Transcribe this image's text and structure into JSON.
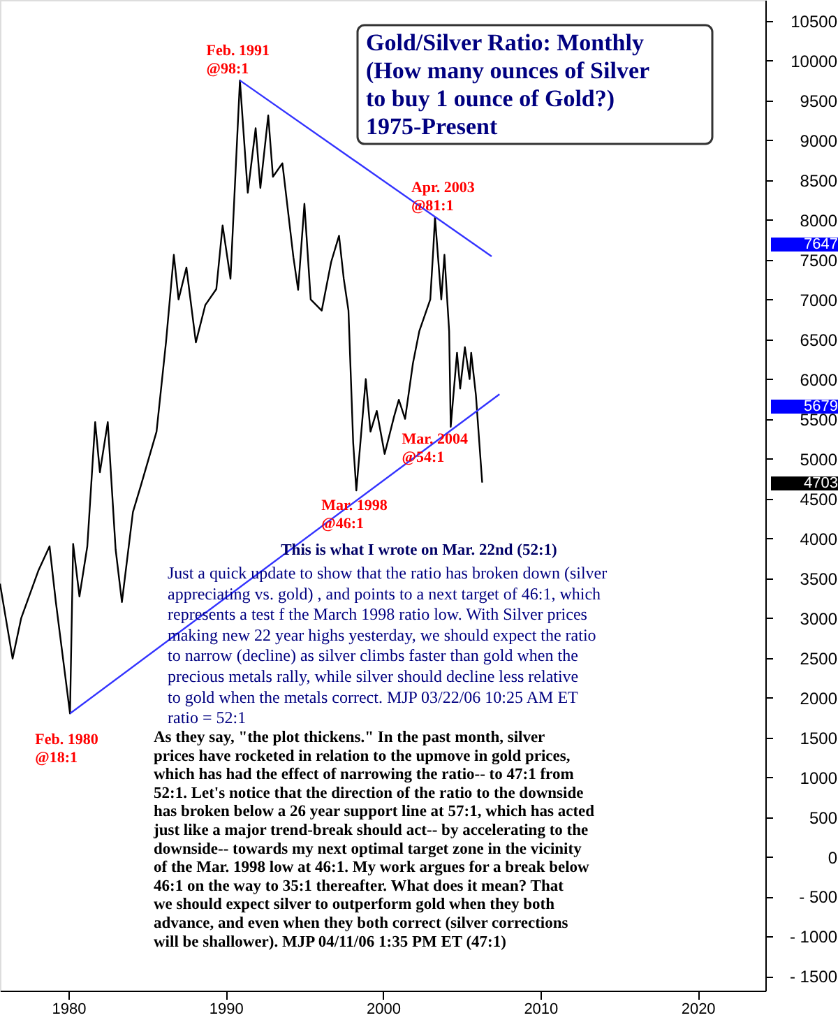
{
  "chart_data": {
    "type": "line",
    "title": "Gold/Silver Ratio: Monthly\n(How many ounces of Silver\nto buy 1 ounce of Gold?)\n1975-Present",
    "xlim": [
      1975.65,
      2024.3
    ],
    "xticks": [
      1980,
      1990,
      2000,
      2010,
      2020
    ],
    "ylim": [
      -1680,
      10760
    ],
    "yticks": [
      {
        "value": -1500,
        "label": "- 1500"
      },
      {
        "value": -1000,
        "label": "- 1000"
      },
      {
        "value": -500,
        "label": "- 500"
      },
      0,
      500,
      1000,
      1500,
      2000,
      2500,
      3000,
      3500,
      4000,
      4500,
      5000,
      5500,
      6000,
      6500,
      7000,
      7500,
      8000,
      8500,
      9000,
      9500,
      10000,
      10500
    ],
    "grid": false,
    "series": [
      {
        "color": "#000000",
        "x": [
          1975.65,
          1976.45,
          1977.0,
          1978.1,
          1978.8,
          1979.2,
          1980.1,
          1980.3,
          1980.7,
          1981.2,
          1981.7,
          1982.0,
          1982.5,
          1983.0,
          1983.4,
          1984.1,
          1984.6,
          1985.6,
          1986.2,
          1986.7,
          1987.0,
          1987.5,
          1988.1,
          1988.7,
          1989.4,
          1989.8,
          1990.3,
          1990.9,
          1991.4,
          1991.9,
          1992.2,
          1992.7,
          1993.0,
          1993.6,
          1994.3,
          1994.6,
          1995.0,
          1995.4,
          1996.1,
          1996.7,
          1997.2,
          1997.5,
          1997.8,
          1998.1,
          1998.3,
          1998.9,
          1999.2,
          1999.6,
          2000.1,
          2000.7,
          2001.0,
          2001.4,
          2001.9,
          2002.3,
          2003.0,
          2003.2,
          2003.3,
          2003.7,
          2003.9,
          2004.2,
          2004.3,
          2004.7,
          2004.9,
          2005.2,
          2005.5,
          2005.6,
          2005.9,
          2006.3
        ],
        "values": [
          3430,
          2490,
          3000,
          3600,
          3900,
          3200,
          1800,
          3930,
          3270,
          3900,
          5460,
          4830,
          5460,
          3860,
          3200,
          4330,
          4660,
          5340,
          6460,
          7560,
          7000,
          7400,
          6460,
          6930,
          7130,
          7930,
          7260,
          9750,
          8340,
          9150,
          8400,
          9310,
          8540,
          8710,
          7530,
          7120,
          8200,
          7000,
          6860,
          7470,
          7800,
          7260,
          6860,
          5200,
          4600,
          6000,
          5340,
          5600,
          5060,
          5530,
          5740,
          5500,
          6200,
          6600,
          7000,
          7660,
          8030,
          7000,
          7560,
          6600,
          5400,
          6330,
          5880,
          6400,
          6000,
          6330,
          5800,
          4700
        ]
      },
      {
        "type": "line",
        "color": "#3333ff",
        "x": [
          1990.9,
          2006.9
        ],
        "values": [
          9750,
          7540
        ]
      },
      {
        "type": "line",
        "color": "#3333ff",
        "x": [
          1980.1,
          2007.4
        ],
        "values": [
          1800,
          5810
        ]
      }
    ],
    "annotations": [
      {
        "text": "Feb. 1991\n@98:1",
        "x": 1990.9,
        "y": 9750
      },
      {
        "text": "Apr. 2003\n@81:1",
        "x": 2003.3,
        "y": 8030
      },
      {
        "text": "Mar. 2004\n@54:1",
        "x": 2004.3,
        "y": 5400
      },
      {
        "text": "Mar. 1998\n@46:1",
        "x": 1998.3,
        "y": 4600
      },
      {
        "text": "Feb. 1980\n@18:1",
        "x": 1980.1,
        "y": 1800
      },
      "7647",
      "5679",
      "4703",
      "This is what I wrote on Mar. 22nd  (52:1)",
      "Just a quick update to show that the ratio has broken down (silver\nappreciating vs. gold) , and points to a next target of 46:1, which\nrepresents a test f the March 1998 ratio low. With Silver prices\nmaking new 22 year highs yesterday, we should expect the ratio\nto narrow (decline) as silver climbs faster than gold when the\nprecious metals rally, while silver should decline less relative\nto gold when the metals correct. MJP  03/22/06  10:25 AM ET\nratio = 52:1",
      "As they say, \"the plot thickens.\"  In the past month, silver\nprices have rocketed in relation to the upmove in gold prices,\nwhich has had the effect of narrowing the ratio-- to 47:1 from\n52:1. Let's notice that the direction of the ratio to the downside\nhas broken below a 26 year support line at 57:1, which has acted\njust like a major trend-break should act-- by accelerating to the\ndownside-- towards my next optimal target zone in the vicinity\nof the Mar. 1998 low at 46:1. My work argues for a break below\n46:1 on the way to 35:1 thereafter. What does it mean?  That\nwe should expect silver to outperform gold when they both\nadvance, and even when they both correct (silver corrections\nwill be shallower).  MJP  04/11/06  1:35 PM ET  (47:1)"
    ]
  }
}
